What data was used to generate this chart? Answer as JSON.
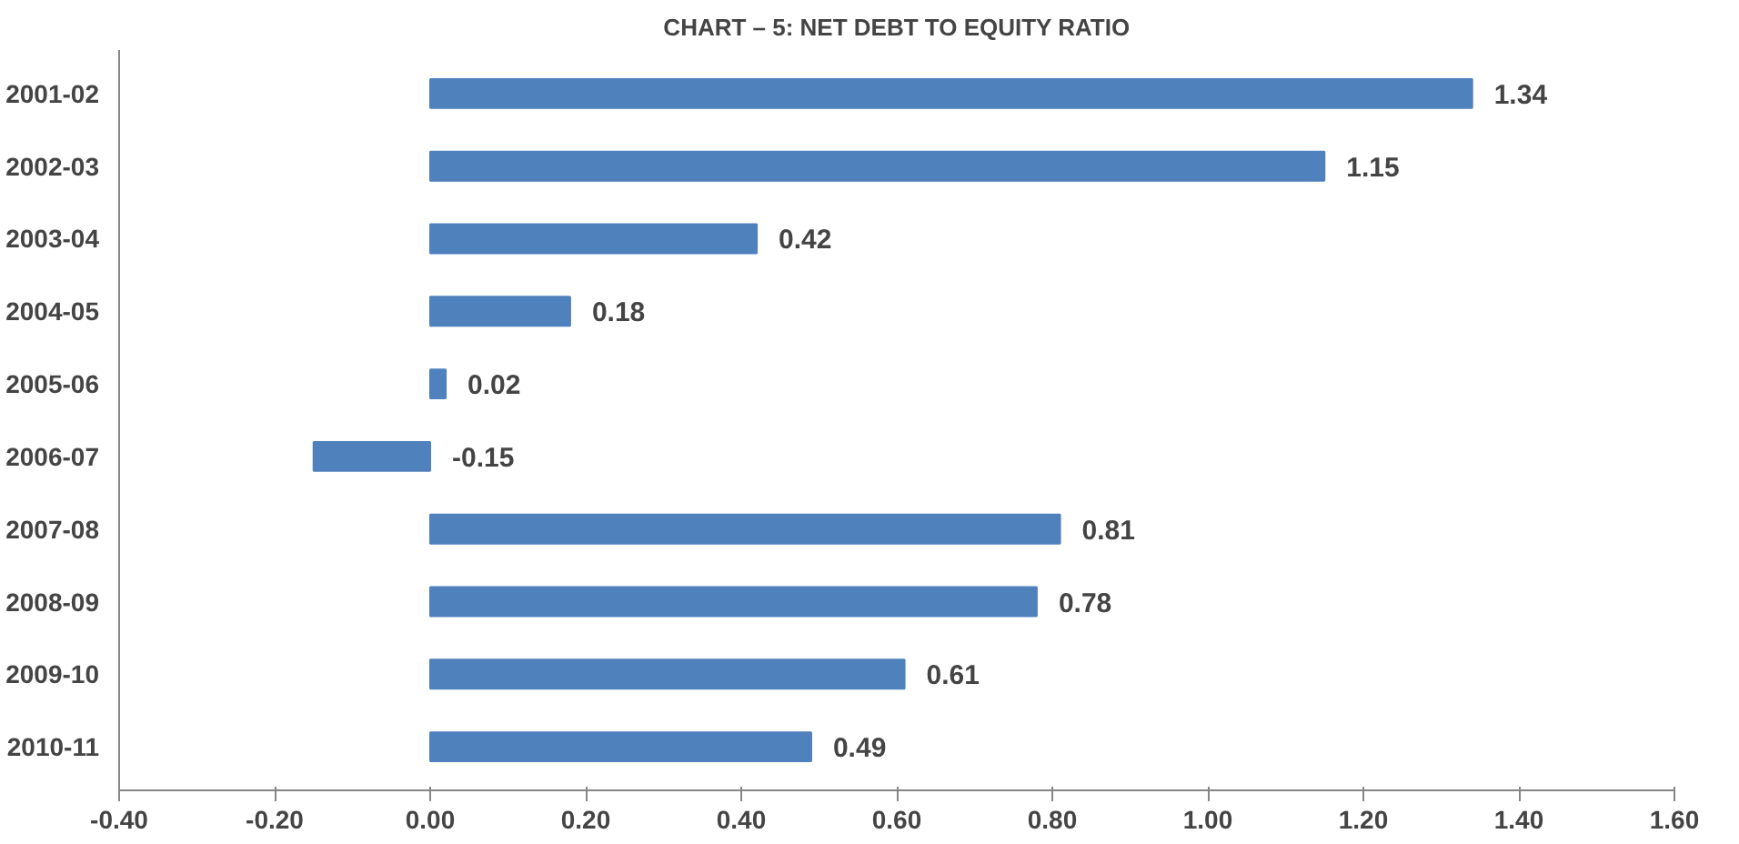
{
  "chart_data": {
    "type": "bar",
    "orientation": "horizontal",
    "title": "CHART – 5: NET DEBT TO EQUITY RATIO",
    "categories": [
      "2001-02",
      "2002-03",
      "2003-04",
      "2004-05",
      "2005-06",
      "2006-07",
      "2007-08",
      "2008-09",
      "2009-10",
      "2010-11"
    ],
    "values": [
      1.34,
      1.15,
      0.42,
      0.18,
      0.02,
      -0.15,
      0.81,
      0.78,
      0.61,
      0.49
    ],
    "color": "#4f81bd",
    "data_labels": true,
    "grid": false,
    "xlim": [
      -0.4,
      1.6
    ],
    "xticks": [
      {
        "value": -0.4,
        "label": "-0.40"
      },
      {
        "value": -0.2,
        "label": "-0.20"
      },
      {
        "value": 0,
        "label": "0.00"
      },
      {
        "value": 0.2,
        "label": "0.20"
      },
      {
        "value": 0.4,
        "label": "0.40"
      },
      {
        "value": 0.6,
        "label": "0.60"
      },
      {
        "value": 0.8,
        "label": "0.80"
      },
      {
        "value": 1.0,
        "label": "1.00"
      },
      {
        "value": 1.2,
        "label": "1.20"
      },
      {
        "value": 1.4,
        "label": "1.40"
      },
      {
        "value": 1.6,
        "label": "1.60"
      }
    ]
  }
}
